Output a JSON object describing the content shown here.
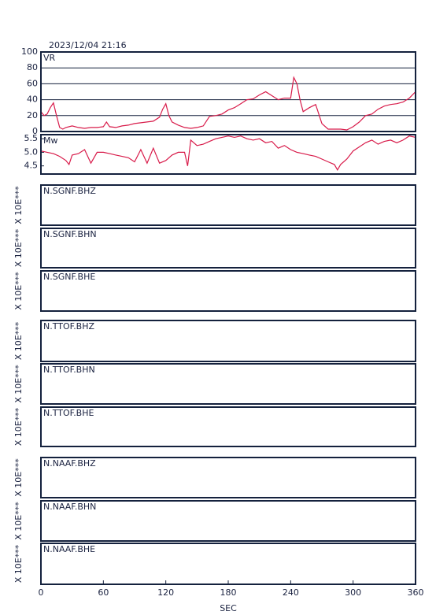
{
  "title": "2023/12/04 21:16",
  "chart_data": [
    {
      "type": "line",
      "label": "VR",
      "color": "#d81b4a",
      "grid": true,
      "xlim": [
        0,
        360
      ],
      "ylim": [
        0,
        100
      ],
      "yticks": [
        0,
        20,
        40,
        60,
        80,
        100
      ],
      "x": [
        0,
        3,
        6,
        9,
        12,
        15,
        18,
        21,
        24,
        30,
        36,
        42,
        48,
        54,
        60,
        63,
        66,
        72,
        78,
        84,
        90,
        96,
        102,
        108,
        114,
        117,
        120,
        123,
        126,
        132,
        138,
        144,
        150,
        156,
        162,
        168,
        174,
        180,
        186,
        192,
        198,
        204,
        210,
        216,
        222,
        228,
        234,
        240,
        243,
        246,
        249,
        252,
        258,
        264,
        270,
        276,
        282,
        288,
        294,
        300,
        306,
        312,
        318,
        324,
        330,
        336,
        342,
        348,
        354,
        360
      ],
      "values": [
        25,
        20,
        22,
        30,
        36,
        20,
        5,
        3,
        5,
        7,
        5,
        4,
        5,
        5,
        6,
        12,
        6,
        5,
        7,
        8,
        10,
        11,
        12,
        13,
        18,
        28,
        35,
        20,
        12,
        8,
        5,
        4,
        5,
        7,
        19,
        20,
        22,
        27,
        30,
        35,
        40,
        41,
        46,
        50,
        45,
        40,
        42,
        42,
        68,
        60,
        40,
        25,
        30,
        34,
        10,
        3,
        3,
        3,
        2,
        6,
        12,
        20,
        22,
        28,
        32,
        34,
        35,
        37,
        42,
        50
      ]
    },
    {
      "type": "line",
      "label": "Mw",
      "color": "#d81b4a",
      "grid": false,
      "xlim": [
        0,
        360
      ],
      "ylim": [
        4.2,
        5.65
      ],
      "yticks": [
        4.5,
        {
          "value": 5,
          "label": "5.0"
        },
        5.5
      ],
      "x": [
        0,
        6,
        12,
        18,
        24,
        27,
        30,
        36,
        42,
        48,
        54,
        60,
        66,
        72,
        78,
        84,
        90,
        96,
        102,
        108,
        114,
        120,
        126,
        132,
        138,
        141,
        144,
        150,
        156,
        162,
        168,
        174,
        180,
        186,
        192,
        198,
        204,
        210,
        216,
        222,
        228,
        234,
        240,
        246,
        252,
        258,
        264,
        270,
        276,
        282,
        285,
        288,
        294,
        300,
        306,
        312,
        318,
        324,
        330,
        336,
        342,
        348,
        354,
        360
      ],
      "values": [
        5.05,
        5.0,
        4.95,
        4.85,
        4.7,
        4.55,
        4.9,
        4.95,
        5.1,
        4.6,
        5.0,
        5.0,
        4.95,
        4.9,
        4.85,
        4.8,
        4.65,
        5.1,
        4.6,
        5.15,
        4.6,
        4.7,
        4.9,
        5.0,
        5.0,
        4.5,
        5.45,
        5.25,
        5.3,
        5.4,
        5.5,
        5.55,
        5.6,
        5.55,
        5.6,
        5.5,
        5.45,
        5.5,
        5.35,
        5.4,
        5.15,
        5.25,
        5.1,
        5.0,
        4.95,
        4.9,
        4.85,
        4.75,
        4.65,
        4.55,
        4.35,
        4.55,
        4.75,
        5.05,
        5.2,
        5.35,
        5.45,
        5.3,
        5.4,
        5.45,
        5.35,
        5.45,
        5.6,
        5.55
      ]
    },
    {
      "type": "trace",
      "label": "N.SGNF.BHZ",
      "ylabel": "X 10E***"
    },
    {
      "type": "trace",
      "label": "N.SGNF.BHN",
      "ylabel": "X 10E***"
    },
    {
      "type": "trace",
      "label": "N.SGNF.BHE",
      "ylabel": "X 10E***"
    },
    {
      "type": "trace",
      "label": "N.TTOF.BHZ",
      "ylabel": "X 10E***"
    },
    {
      "type": "trace",
      "label": "N.TTOF.BHN",
      "ylabel": "X 10E***"
    },
    {
      "type": "trace",
      "label": "N.TTOF.BHE",
      "ylabel": "X 10E***"
    },
    {
      "type": "trace",
      "label": "N.NAAF.BHZ",
      "ylabel": "X 10E***"
    },
    {
      "type": "trace",
      "label": "N.NAAF.BHN",
      "ylabel": "X 10E***"
    },
    {
      "type": "trace",
      "label": "N.NAAF.BHE",
      "ylabel": "X 10E***",
      "xlim": [
        0,
        360
      ],
      "xticks": [
        0,
        60,
        120,
        180,
        240,
        300,
        360
      ],
      "xlabel": "SEC"
    }
  ]
}
